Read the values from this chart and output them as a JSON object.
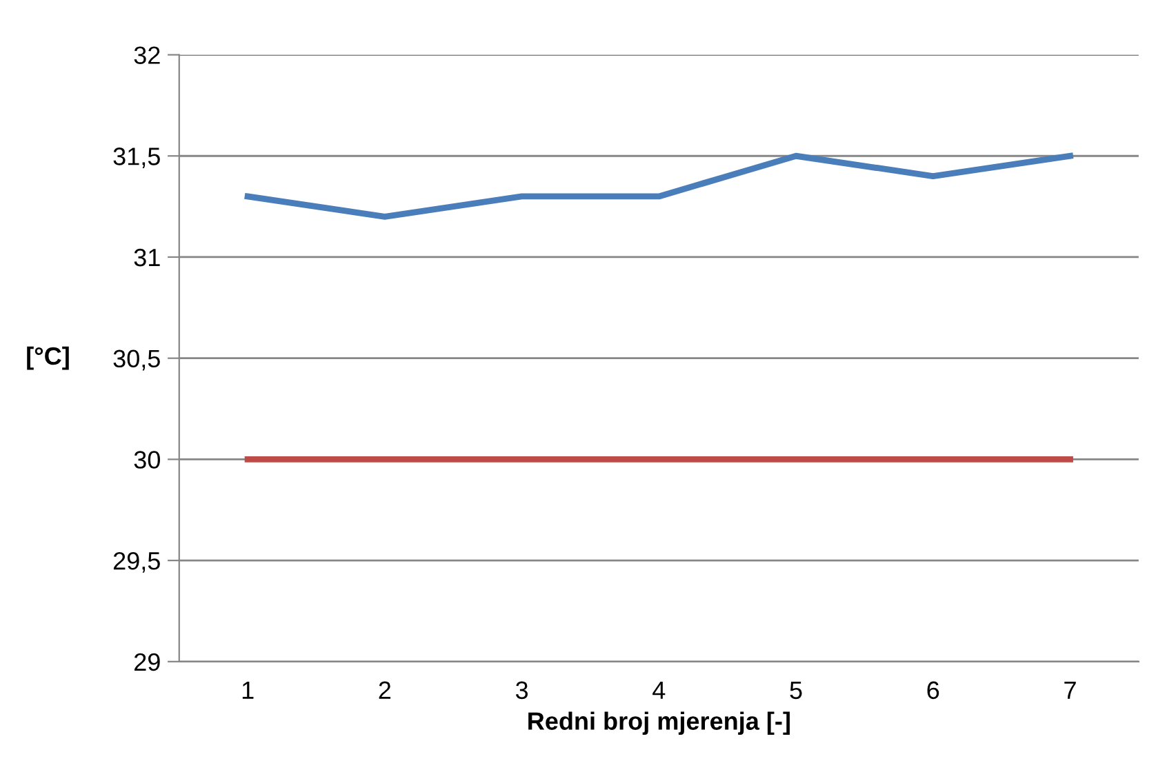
{
  "chart_data": {
    "type": "line",
    "xlabel": "Redni broj mjerenja [-]",
    "ylabel": "[°C]",
    "categories": [
      "1",
      "2",
      "3",
      "4",
      "5",
      "6",
      "7"
    ],
    "series": [
      {
        "color": "#4a7ebb",
        "values": [
          31.3,
          31.2,
          31.3,
          31.3,
          31.5,
          31.4,
          31.5
        ]
      },
      {
        "color": "#be4b48",
        "values": [
          30,
          30,
          30,
          30,
          30,
          30,
          30
        ]
      }
    ],
    "ylim": [
      29,
      32
    ],
    "yticks": [
      29,
      {
        "value": 29.5,
        "label": "29,5"
      },
      30,
      {
        "value": 30.5,
        "label": "30,5"
      },
      31,
      {
        "value": 31.5,
        "label": "31,5"
      },
      32
    ],
    "grid": "y",
    "marker": "none",
    "line_style": "solid",
    "legend": false
  }
}
